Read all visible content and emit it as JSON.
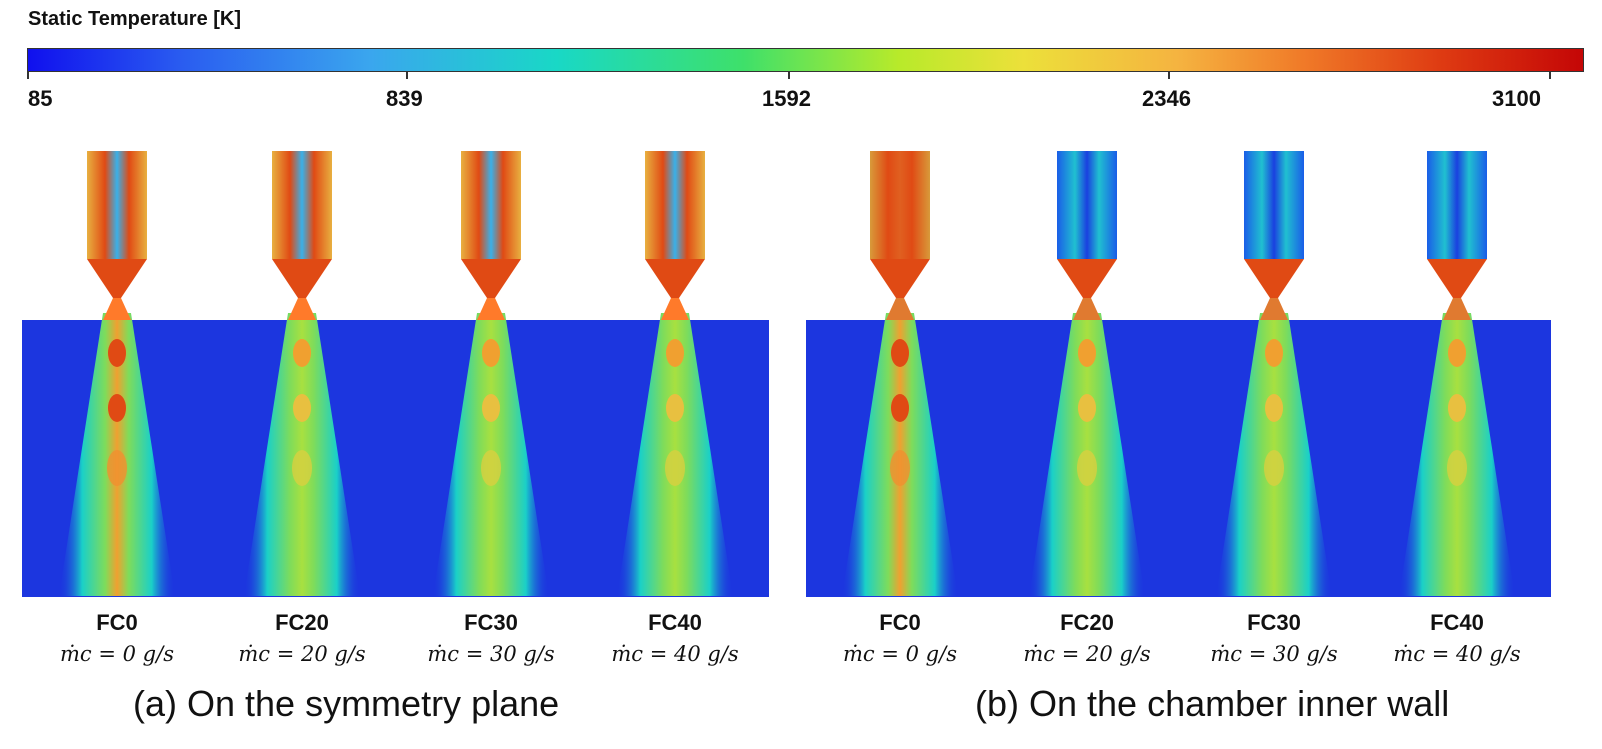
{
  "colorbar": {
    "title": "Static Temperature [K]",
    "ticks": [
      "85",
      "839",
      "1592",
      "2346",
      "3100"
    ],
    "colors": [
      "#1010ee",
      "#3aa6ee",
      "#19d8c6",
      "#3ee06a",
      "#b8ea2a",
      "#ece03a",
      "#f5b340",
      "#f07a28",
      "#de3a12",
      "#c40606"
    ]
  },
  "panels": [
    {
      "caption": "(a) On the symmetry plane",
      "cases": [
        {
          "id": "FC0",
          "flow": "ṁc =  0 g/s"
        },
        {
          "id": "FC20",
          "flow": "ṁc = 20 g/s"
        },
        {
          "id": "FC30",
          "flow": "ṁc = 30 g/s"
        },
        {
          "id": "FC40",
          "flow": "ṁc = 40 g/s"
        }
      ]
    },
    {
      "caption": "(b) On the chamber inner wall",
      "cases": [
        {
          "id": "FC0",
          "flow": "ṁc =  0 g/s"
        },
        {
          "id": "FC20",
          "flow": "ṁc = 20 g/s"
        },
        {
          "id": "FC30",
          "flow": "ṁc = 30 g/s"
        },
        {
          "id": "FC40",
          "flow": "ṁc = 40 g/s"
        }
      ]
    }
  ],
  "field_colors": {
    "ambient": "#1c36df",
    "hot": "#e04a14",
    "warm": "#f0a030",
    "jet": "#7fdc5a",
    "cool": "#1ad0c8"
  }
}
